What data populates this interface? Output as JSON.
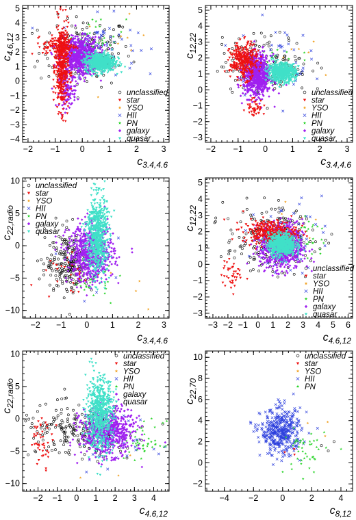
{
  "legend_entries": [
    {
      "key": "unclassified",
      "label": "unclassified",
      "color": "#000000",
      "marker": "circle-open"
    },
    {
      "key": "star",
      "label": "star",
      "color": "#ee1111",
      "marker": "triangle-down"
    },
    {
      "key": "YSO",
      "label": "YSO",
      "color": "#f0a020",
      "marker": "star"
    },
    {
      "key": "HII",
      "label": "HII",
      "color": "#2d40dd",
      "marker": "cross"
    },
    {
      "key": "PN",
      "label": "PN",
      "color": "#28d428",
      "marker": "star"
    },
    {
      "key": "galaxy",
      "label": "galaxy",
      "color": "#a020f0",
      "marker": "diamond"
    },
    {
      "key": "quasar",
      "label": "quasar",
      "color": "#40e0c8",
      "marker": "triangle-down"
    }
  ],
  "chart_data": [
    {
      "type": "scatter",
      "xlabel_main": "c",
      "xlabel_sub": "3.4,4.6",
      "ylabel_main": "c",
      "ylabel_sub": "4.6,12",
      "xlim": [
        -2.2,
        3.2
      ],
      "ylim": [
        -4.2,
        5.2
      ],
      "xticks": [
        -2,
        -1,
        0,
        1,
        2,
        3
      ],
      "yticks": [
        -4,
        -3,
        -2,
        -1,
        0,
        1,
        2,
        3,
        4,
        5
      ],
      "legend": [
        "unclassified",
        "star",
        "YSO",
        "HII",
        "PN",
        "galaxy",
        "quasar"
      ],
      "legend_position": "lower-right",
      "clusters": [
        {
          "series": "unclassified",
          "n": 170,
          "cx": 0.1,
          "cy": 2.0,
          "sx": 0.85,
          "sy": 1.2
        },
        {
          "series": "star",
          "n": 420,
          "cx": -0.75,
          "cy": 1.0,
          "sx": 0.12,
          "sy": 1.5
        },
        {
          "series": "star",
          "n": 140,
          "cx": -0.85,
          "cy": 2.4,
          "sx": 0.3,
          "sy": 0.35
        },
        {
          "series": "galaxy",
          "n": 750,
          "cx": -0.1,
          "cy": 1.7,
          "sx": 0.35,
          "sy": 0.65
        },
        {
          "series": "galaxy",
          "n": 120,
          "cx": -0.55,
          "cy": -0.6,
          "sx": 0.15,
          "sy": 0.6
        },
        {
          "series": "quasar",
          "n": 650,
          "cx": 0.65,
          "cy": 1.3,
          "sx": 0.28,
          "sy": 0.32
        },
        {
          "series": "HII",
          "n": 60,
          "cx": 0.6,
          "cy": 2.5,
          "sx": 0.7,
          "sy": 1.0
        },
        {
          "series": "PN",
          "n": 30,
          "cx": 0.6,
          "cy": 3.2,
          "sx": 0.5,
          "sy": 0.6
        },
        {
          "series": "YSO",
          "n": 8,
          "cx": 1.2,
          "cy": 2.3,
          "sx": 0.6,
          "sy": 1.0
        }
      ]
    },
    {
      "type": "scatter",
      "xlabel_main": "c",
      "xlabel_sub": "3.4,4.6",
      "ylabel_main": "c",
      "ylabel_sub": "12,22",
      "xlim": [
        -2.2,
        3.2
      ],
      "ylim": [
        -3.3,
        5.3
      ],
      "xticks": [
        -2,
        -1,
        0,
        1,
        2,
        3
      ],
      "yticks": [
        -3,
        -2,
        -1,
        0,
        1,
        2,
        3,
        4,
        5
      ],
      "legend": [
        "unclassified",
        "star",
        "YSO",
        "HII",
        "PN",
        "galaxy",
        "quasar"
      ],
      "legend_position": "lower-right",
      "clusters": [
        {
          "series": "unclassified",
          "n": 170,
          "cx": 0.0,
          "cy": 1.6,
          "sx": 0.8,
          "sy": 0.9
        },
        {
          "series": "star",
          "n": 320,
          "cx": -0.8,
          "cy": 1.8,
          "sx": 0.25,
          "sy": 0.55
        },
        {
          "series": "star",
          "n": 40,
          "cx": -0.4,
          "cy": -1.1,
          "sx": 0.15,
          "sy": 0.3
        },
        {
          "series": "galaxy",
          "n": 750,
          "cx": -0.3,
          "cy": 0.9,
          "sx": 0.25,
          "sy": 0.65
        },
        {
          "series": "quasar",
          "n": 650,
          "cx": 0.6,
          "cy": 1.1,
          "sx": 0.25,
          "sy": 0.28
        },
        {
          "series": "HII",
          "n": 50,
          "cx": 0.2,
          "cy": 2.0,
          "sx": 0.7,
          "sy": 1.1
        },
        {
          "series": "PN",
          "n": 20,
          "cx": 0.2,
          "cy": 1.9,
          "sx": 0.5,
          "sy": 0.5
        },
        {
          "series": "YSO",
          "n": 6,
          "cx": 1.5,
          "cy": 2.0,
          "sx": 0.7,
          "sy": 0.7
        }
      ]
    },
    {
      "type": "scatter",
      "xlabel_main": "c",
      "xlabel_sub": "3.4,4.6",
      "ylabel_main": "c",
      "ylabel_sub": "22,radio",
      "xlim": [
        -2.5,
        3.2
      ],
      "ylim": [
        -11.2,
        10.5
      ],
      "xticks": [
        -2,
        -1,
        0,
        1,
        2,
        3
      ],
      "yticks": [
        -10,
        -5,
        0,
        5,
        10
      ],
      "legend": [
        "unclassified",
        "star",
        "YSO",
        "HII",
        "PN",
        "galaxy",
        "quasar"
      ],
      "legend_position": "upper-left",
      "clusters": [
        {
          "series": "unclassified",
          "n": 220,
          "cx": -0.7,
          "cy": -2.5,
          "sx": 0.45,
          "sy": 2.4
        },
        {
          "series": "star",
          "n": 25,
          "cx": -0.6,
          "cy": -4.2,
          "sx": 0.5,
          "sy": 2.0
        },
        {
          "series": "galaxy",
          "n": 650,
          "cx": 0.15,
          "cy": -1.2,
          "sx": 0.45,
          "sy": 2.2
        },
        {
          "series": "quasar",
          "n": 650,
          "cx": 0.4,
          "cy": 1.8,
          "sx": 0.2,
          "sy": 3.0
        },
        {
          "series": "HII",
          "n": 30,
          "cx": 0.3,
          "cy": -3.0,
          "sx": 0.5,
          "sy": 2.0
        },
        {
          "series": "PN",
          "n": 35,
          "cx": 0.2,
          "cy": -4.5,
          "sx": 0.4,
          "sy": 1.8
        },
        {
          "series": "YSO",
          "n": 4,
          "cx": 1.8,
          "cy": -7.0,
          "sx": 0.8,
          "sy": 1.5
        }
      ]
    },
    {
      "type": "scatter",
      "xlabel_main": "c",
      "xlabel_sub": "4.6,12",
      "ylabel_main": "c",
      "ylabel_sub": "12,22",
      "xlim": [
        -3.5,
        6.3
      ],
      "ylim": [
        -3.3,
        5.3
      ],
      "xticks": [
        -3,
        -2,
        -1,
        0,
        1,
        2,
        3,
        4,
        5,
        6
      ],
      "yticks": [
        -3,
        -2,
        -1,
        0,
        1,
        2,
        3,
        4,
        5
      ],
      "legend": [
        "unclassified",
        "star",
        "YSO",
        "HII",
        "PN",
        "galaxy",
        "quasar"
      ],
      "legend_position": "lower-right",
      "clusters": [
        {
          "series": "unclassified",
          "n": 220,
          "cx": 0.8,
          "cy": 1.5,
          "sx": 1.5,
          "sy": 1.0
        },
        {
          "series": "star",
          "n": 320,
          "cx": 0.8,
          "cy": 2.0,
          "sx": 0.9,
          "sy": 0.35
        },
        {
          "series": "star",
          "n": 40,
          "cx": -1.7,
          "cy": -0.7,
          "sx": 0.35,
          "sy": 0.45
        },
        {
          "series": "galaxy",
          "n": 750,
          "cx": 1.6,
          "cy": 1.1,
          "sx": 0.7,
          "sy": 0.7
        },
        {
          "series": "quasar",
          "n": 650,
          "cx": 1.6,
          "cy": 1.2,
          "sx": 0.45,
          "sy": 0.35
        },
        {
          "series": "HII",
          "n": 50,
          "cx": 1.8,
          "cy": 1.8,
          "sx": 1.2,
          "sy": 1.1
        },
        {
          "series": "PN",
          "n": 40,
          "cx": 3.2,
          "cy": 1.6,
          "sx": 0.6,
          "sy": 0.7
        },
        {
          "series": "YSO",
          "n": 6,
          "cx": 3.0,
          "cy": 2.0,
          "sx": 1.0,
          "sy": 0.8
        }
      ]
    },
    {
      "type": "scatter",
      "xlabel_main": "c",
      "xlabel_sub": "4.6,12",
      "ylabel_main": "c",
      "ylabel_sub": "22,radio",
      "xlim": [
        -2.8,
        4.8
      ],
      "ylim": [
        -11.2,
        10.5
      ],
      "xticks": [
        -2,
        -1,
        0,
        1,
        2,
        3,
        4
      ],
      "yticks": [
        -10,
        -5,
        0,
        5,
        10
      ],
      "legend": [
        "unclassified",
        "star",
        "YSO",
        "HII",
        "PN",
        "galaxy",
        "quasar"
      ],
      "legend_position": "upper-right",
      "clusters": [
        {
          "series": "unclassified",
          "n": 220,
          "cx": 0.0,
          "cy": -2.0,
          "sx": 1.5,
          "sy": 2.0
        },
        {
          "series": "star",
          "n": 45,
          "cx": -1.8,
          "cy": -3.5,
          "sx": 0.3,
          "sy": 1.8
        },
        {
          "series": "galaxy",
          "n": 650,
          "cx": 1.6,
          "cy": -2.0,
          "sx": 0.7,
          "sy": 1.8
        },
        {
          "series": "quasar",
          "n": 650,
          "cx": 1.2,
          "cy": 0.8,
          "sx": 0.35,
          "sy": 2.8
        },
        {
          "series": "HII",
          "n": 30,
          "cx": 2.0,
          "cy": -3.5,
          "sx": 1.0,
          "sy": 2.0
        },
        {
          "series": "PN",
          "n": 45,
          "cx": 3.5,
          "cy": -3.5,
          "sx": 0.5,
          "sy": 1.5
        },
        {
          "series": "YSO",
          "n": 4,
          "cx": 2.0,
          "cy": -7.0,
          "sx": 1.0,
          "sy": 1.5
        }
      ]
    },
    {
      "type": "scatter",
      "xlabel_main": "c",
      "xlabel_sub": "8,12",
      "ylabel_main": "c",
      "ylabel_sub": "22,70",
      "xlim": [
        -5.3,
        4.8
      ],
      "ylim": [
        -2.7,
        10.6
      ],
      "xticks": [
        -4,
        -2,
        0,
        2,
        4
      ],
      "yticks": [
        -2,
        0,
        2,
        4,
        6,
        8,
        10
      ],
      "legend": [
        "unclassified",
        "star",
        "YSO",
        "HII",
        "PN"
      ],
      "legend_position": "upper-right",
      "clusters": [
        {
          "series": "HII",
          "n": 400,
          "cx": -0.1,
          "cy": 2.9,
          "sx": 0.7,
          "sy": 1.1
        },
        {
          "series": "PN",
          "n": 45,
          "cx": 1.5,
          "cy": 1.2,
          "sx": 0.7,
          "sy": 1.2
        },
        {
          "series": "star",
          "n": 3,
          "cx": 0.6,
          "cy": 0.8,
          "sx": 0.4,
          "sy": 0.6
        },
        {
          "series": "YSO",
          "n": 3,
          "cx": 2.5,
          "cy": 2.5,
          "sx": 0.8,
          "sy": 0.8
        },
        {
          "series": "unclassified",
          "n": 3,
          "cx": 2.8,
          "cy": 1.5,
          "sx": 0.8,
          "sy": 0.8
        }
      ]
    }
  ]
}
